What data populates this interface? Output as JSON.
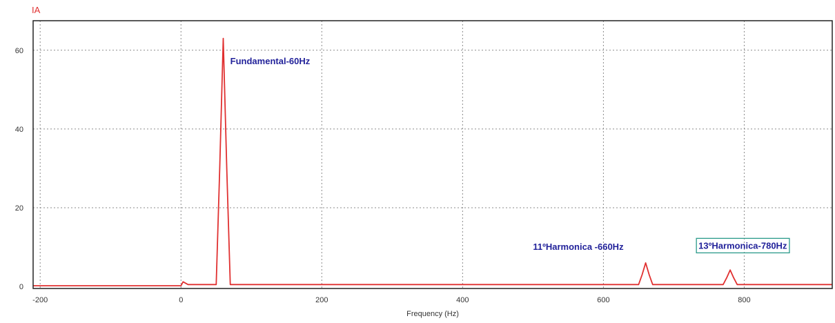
{
  "chart_data": {
    "type": "line",
    "title": "",
    "signal_name": "IA",
    "xlabel": "Frequency (Hz)",
    "ylabel": "",
    "xlim": [
      -210,
      925
    ],
    "ylim": [
      -0.5,
      67.5
    ],
    "x_ticks": [
      -200,
      0,
      200,
      400,
      600,
      800
    ],
    "y_ticks": [
      0,
      20,
      40,
      60
    ],
    "x_tick_labels": [
      "-200",
      "0",
      "200",
      "400",
      "600",
      "800"
    ],
    "y_tick_labels": [
      "0",
      "20",
      "40",
      "60"
    ],
    "grid": true,
    "series": [
      {
        "color": "#e03030",
        "x": [
          -210,
          0,
          3,
          10,
          50,
          55,
          60,
          65,
          70,
          650,
          655,
          660,
          665,
          670,
          770,
          775,
          780,
          785,
          790,
          925
        ],
        "y": [
          0.2,
          0.2,
          1.2,
          0.5,
          0.5,
          30,
          63,
          30,
          0.5,
          0.5,
          3,
          6,
          3,
          0.5,
          0.5,
          2.2,
          4.2,
          2.2,
          0.5,
          0.5
        ]
      }
    ],
    "annotations": [
      {
        "text": "Fundamental-60Hz",
        "x": 70,
        "y": 56.5,
        "boxed": false
      },
      {
        "text": "11ºHarmonica -660Hz",
        "x": 500,
        "y": 9.3,
        "boxed": false
      },
      {
        "text": "13ºHarmonica-780Hz",
        "x": 735,
        "y": 9.6,
        "boxed": true
      }
    ]
  },
  "colors": {
    "signal_label": "#e03030",
    "annotation_text": "#22229a",
    "annotation_box": "#2a9a8a",
    "grid": "#8a8a8a",
    "frame": "#222222"
  }
}
